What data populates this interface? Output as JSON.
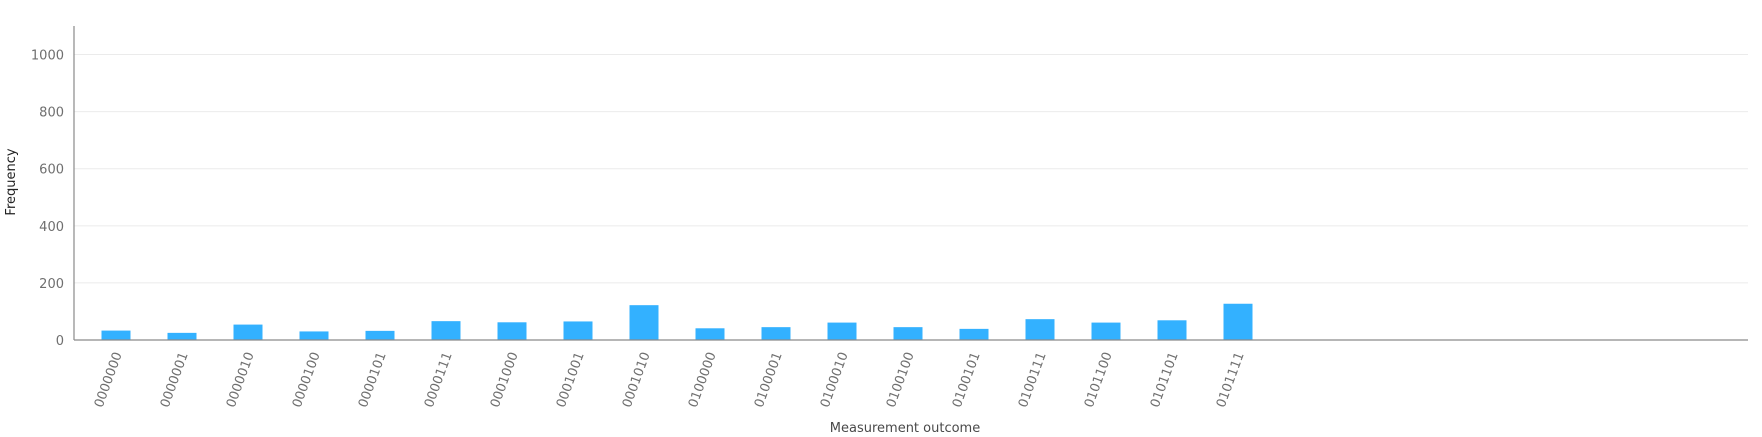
{
  "chart_data": {
    "type": "bar",
    "title": "",
    "xlabel": "Measurement outcome",
    "ylabel": "Frequency",
    "ylim": [
      0,
      1100
    ],
    "yticks": [
      0,
      200,
      400,
      600,
      800,
      1000
    ],
    "grid": true,
    "bar_color": "#33b1ff",
    "categories": [
      "0000000",
      "0000001",
      "0000010",
      "0000100",
      "0000101",
      "0000111",
      "0001000",
      "0001001",
      "0001010",
      "0100000",
      "0100001",
      "0100010",
      "0100100",
      "0100101",
      "0100111",
      "0101100",
      "0101101",
      "0101111"
    ],
    "values": [
      33,
      25,
      54,
      30,
      32,
      66,
      62,
      65,
      122,
      41,
      45,
      61,
      45,
      39,
      73,
      61,
      69,
      127
    ]
  }
}
